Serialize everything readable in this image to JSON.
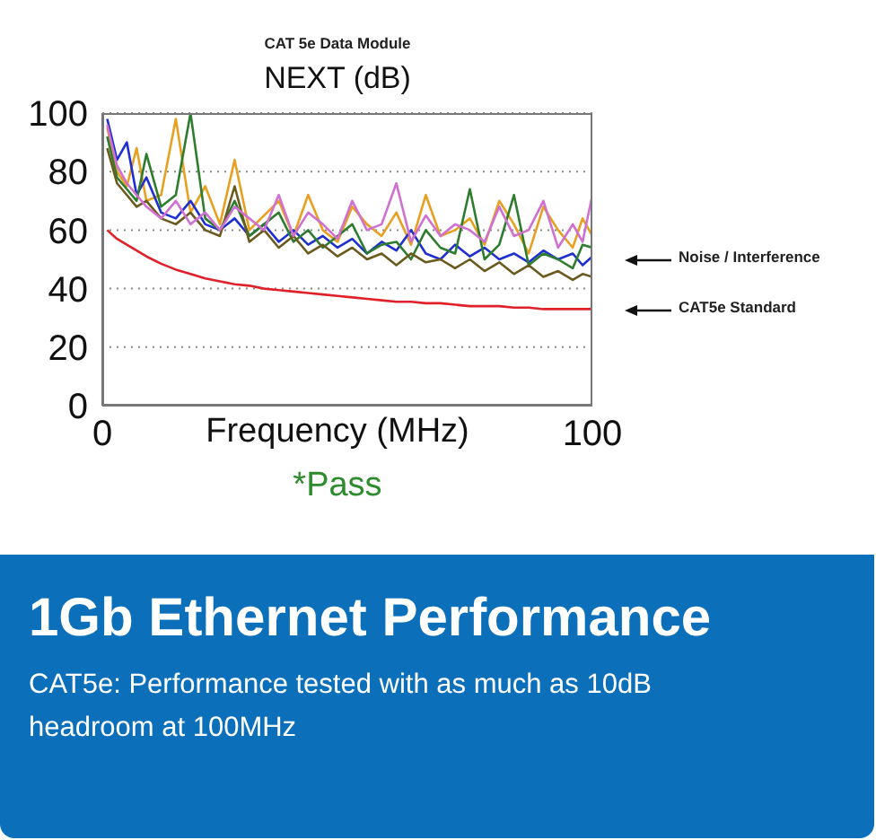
{
  "chart_data": {
    "type": "line",
    "subtitle": "CAT 5e Data Module",
    "title": "NEXT (dB)",
    "xlabel": "Frequency (MHz)",
    "x": [
      1,
      3,
      5,
      7,
      9,
      12,
      15,
      18,
      21,
      24,
      27,
      30,
      33,
      36,
      39,
      42,
      45,
      48,
      51,
      54,
      57,
      60,
      63,
      66,
      69,
      72,
      75,
      78,
      81,
      84,
      87,
      90,
      93,
      96,
      98,
      100
    ],
    "xlim": [
      0,
      100
    ],
    "xticks": [
      0,
      100
    ],
    "ylim": [
      0,
      100
    ],
    "yticks": [
      0,
      20,
      40,
      60,
      80,
      100
    ],
    "grid": "y",
    "marker": "none",
    "line_style": "solid",
    "series": [
      {
        "color": "#e8a020",
        "values": [
          95,
          80,
          75,
          88,
          70,
          72,
          98,
          66,
          75,
          62,
          84,
          60,
          65,
          70,
          58,
          72,
          60,
          56,
          68,
          62,
          58,
          66,
          55,
          72,
          58,
          60,
          64,
          55,
          70,
          62,
          52,
          68,
          60,
          54,
          64,
          58
        ]
      },
      {
        "color": "#1f2fd0",
        "values": [
          98,
          84,
          90,
          72,
          78,
          66,
          64,
          70,
          62,
          60,
          64,
          58,
          62,
          56,
          60,
          55,
          58,
          54,
          57,
          52,
          56,
          53,
          60,
          52,
          50,
          55,
          51,
          54,
          50,
          52,
          49,
          53,
          50,
          52,
          48,
          51
        ]
      },
      {
        "color": "#2e7d2e",
        "values": [
          92,
          78,
          74,
          70,
          86,
          68,
          72,
          100,
          64,
          60,
          70,
          58,
          62,
          66,
          56,
          60,
          54,
          58,
          62,
          52,
          55,
          56,
          50,
          60,
          54,
          52,
          74,
          50,
          55,
          72,
          48,
          52,
          50,
          47,
          55,
          54
        ]
      },
      {
        "color": "#6b5a1e",
        "values": [
          88,
          76,
          72,
          68,
          70,
          64,
          62,
          66,
          60,
          58,
          75,
          56,
          60,
          54,
          58,
          52,
          55,
          51,
          54,
          50,
          52,
          48,
          52,
          49,
          50,
          47,
          50,
          46,
          49,
          45,
          48,
          44,
          46,
          43,
          45,
          44
        ]
      },
      {
        "color": "#d070d0",
        "values": [
          96,
          82,
          76,
          72,
          68,
          64,
          70,
          62,
          66,
          60,
          68,
          64,
          60,
          72,
          58,
          66,
          62,
          57,
          70,
          60,
          62,
          76,
          56,
          65,
          58,
          62,
          60,
          56,
          68,
          58,
          60,
          70,
          54,
          62,
          56,
          72
        ]
      },
      {
        "color": "#e0202a",
        "values": [
          60,
          57,
          55,
          53,
          51,
          48.5,
          46.5,
          45,
          43.5,
          42.5,
          41.5,
          41,
          40,
          39.5,
          39,
          38.5,
          38,
          37.5,
          37,
          36.5,
          36,
          35.5,
          35.5,
          35,
          35,
          34.5,
          34,
          34,
          34,
          33.5,
          33.5,
          33,
          33,
          33,
          33,
          33
        ]
      }
    ],
    "annotations": [
      "Noise / Interference",
      "CAT5e Standard",
      "*Pass",
      "1Gb Ethernet Performance",
      "CAT5e: Performance tested with as much as 10dB headroom at 100MHz"
    ]
  }
}
